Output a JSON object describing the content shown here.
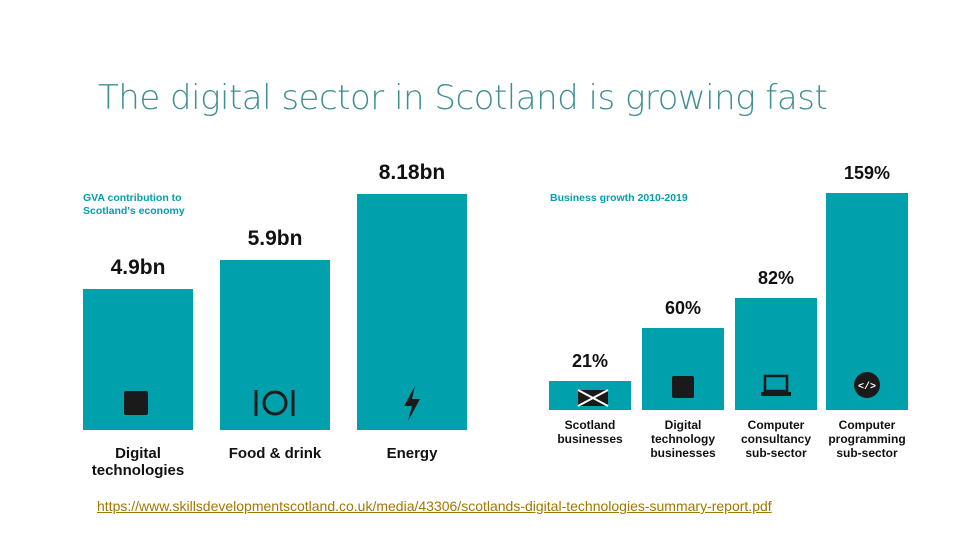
{
  "title": "The digital sector in Scotland is growing fast",
  "chart_data": [
    {
      "type": "bar",
      "title": "GVA contribution to Scotland's economy",
      "categories": [
        "Digital technologies",
        "Food & drink",
        "Energy"
      ],
      "values": [
        4.9,
        5.9,
        8.18
      ],
      "value_labels": [
        "4.9bn",
        "5.9bn",
        "8.18bn"
      ],
      "color": "#00a0ad"
    },
    {
      "type": "bar",
      "title": "Business growth 2010-2019",
      "categories": [
        "Scotland businesses",
        "Digital technology businesses",
        "Computer consultancy sub-sector",
        "Computer programming sub-sector"
      ],
      "values": [
        21,
        60,
        82,
        159
      ],
      "value_labels": [
        "21%",
        "60%",
        "82%",
        "159%"
      ],
      "color": "#00a0ad"
    }
  ],
  "source_link": "https://www.skillsdevelopmentscotland.co.uk/media/43306/scotlands-digital-technologies-summary-report.pdf"
}
